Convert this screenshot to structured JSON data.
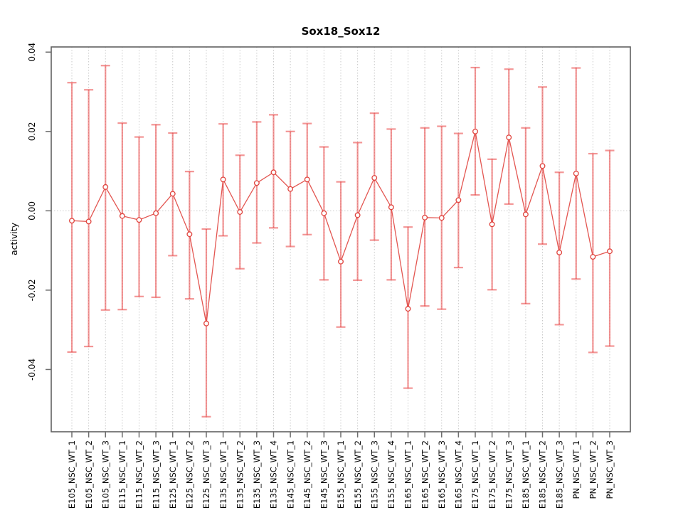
{
  "figure_title": "Sox18_Sox12",
  "chart_data": {
    "type": "scatter",
    "subtype": "points-with-error-bars-connected-by-line",
    "title": "Sox18_Sox12",
    "xlabel": "",
    "ylabel": "activity",
    "ylim": [
      -0.0557,
      0.0413
    ],
    "ytick_values": [
      0.04,
      0.02,
      0.0,
      -0.02,
      -0.04
    ],
    "ytick_labels": [
      "0.04",
      "0.02",
      "0.00",
      "-0.02",
      "-0.04"
    ],
    "grid": {
      "vertical_dotted_at_each_category": true,
      "horizontal_dotted_at_zero": true
    },
    "legend_position": "none",
    "categories": [
      "E105_NSC_WT_1",
      "E105_NSC_WT_2",
      "E105_NSC_WT_3",
      "E115_NSC_WT_1",
      "E115_NSC_WT_2",
      "E115_NSC_WT_3",
      "E125_NSC_WT_1",
      "E125_NSC_WT_2",
      "E125_NSC_WT_3",
      "E135_NSC_WT_1",
      "E135_NSC_WT_2",
      "E135_NSC_WT_3",
      "E135_NSC_WT_4",
      "E145_NSC_WT_1",
      "E145_NSC_WT_2",
      "E145_NSC_WT_3",
      "E155_NSC_WT_1",
      "E155_NSC_WT_2",
      "E155_NSC_WT_3",
      "E155_NSC_WT_4",
      "E165_NSC_WT_1",
      "E165_NSC_WT_2",
      "E165_NSC_WT_3",
      "E165_NSC_WT_4",
      "E175_NSC_WT_1",
      "E175_NSC_WT_2",
      "E175_NSC_WT_3",
      "E185_NSC_WT_1",
      "E185_NSC_WT_2",
      "E185_NSC_WT_3",
      "PN_NSC_WT_1",
      "PN_NSC_WT_2",
      "PN_NSC_WT_3"
    ],
    "series": [
      {
        "name": "activity",
        "values": [
          -0.0025,
          -0.0027,
          0.006,
          -0.0013,
          -0.0023,
          -0.0006,
          0.0043,
          -0.0059,
          -0.0284,
          0.0079,
          -0.0003,
          0.007,
          0.0097,
          0.0055,
          0.0079,
          -0.0006,
          -0.0128,
          -0.0011,
          0.0083,
          0.0009,
          -0.0247,
          -0.0017,
          -0.0018,
          0.0027,
          0.02,
          -0.0034,
          0.0185,
          -0.0009,
          0.0113,
          -0.0105,
          0.0094,
          -0.0116,
          -0.0102
        ],
        "upper": [
          0.0323,
          0.0305,
          0.0366,
          0.0221,
          0.0186,
          0.0217,
          0.0196,
          0.0099,
          -0.0046,
          0.0219,
          0.014,
          0.0224,
          0.0242,
          0.02,
          0.022,
          0.0161,
          0.0073,
          0.0172,
          0.0246,
          0.0206,
          -0.0041,
          0.0209,
          0.0213,
          0.0195,
          0.0361,
          0.013,
          0.0357,
          0.0209,
          0.0312,
          0.0097,
          0.036,
          0.0144,
          0.0152
        ],
        "lower": [
          -0.0356,
          -0.0342,
          -0.025,
          -0.0249,
          -0.0216,
          -0.0218,
          -0.0113,
          -0.0222,
          -0.0519,
          -0.0063,
          -0.0146,
          -0.0081,
          -0.0043,
          -0.009,
          -0.006,
          -0.0174,
          -0.0293,
          -0.0175,
          -0.0074,
          -0.0174,
          -0.0447,
          -0.024,
          -0.0248,
          -0.0143,
          0.004,
          -0.0199,
          0.0017,
          -0.0234,
          -0.0084,
          -0.0287,
          -0.0172,
          -0.0357,
          -0.0341
        ]
      }
    ],
    "colors": {
      "point_line": "#e0443e",
      "error_bar": "#e93f3f",
      "error_bar_opacity": 0.55,
      "gridline": "#c9c9c9",
      "axis_box": "#616161",
      "tick": "#6e6e6e",
      "background": "#ffffff",
      "text": "#000000"
    }
  }
}
